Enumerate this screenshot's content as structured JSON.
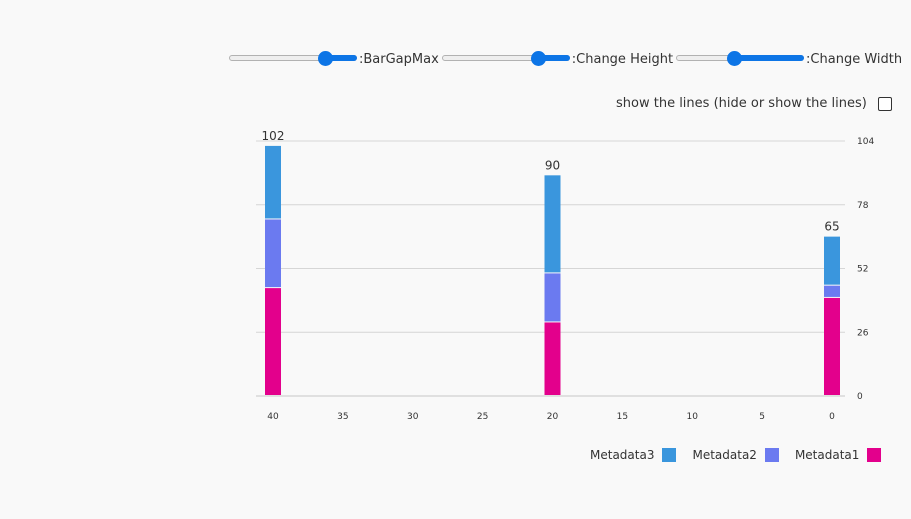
{
  "controls": {
    "bar_gap_max": {
      "label": ":BarGapMax",
      "value": 0.75
    },
    "change_height": {
      "label": ":Change Height",
      "value": 0.75
    },
    "change_width": {
      "label": ":Change Width",
      "value": 0.45
    }
  },
  "toggle_lines": {
    "label": "show the lines (hide or show the lines)",
    "checked": false
  },
  "chart_data": {
    "type": "bar",
    "stacked": true,
    "x": [
      40,
      20,
      0
    ],
    "x_ticks": [
      40,
      35,
      30,
      25,
      20,
      15,
      10,
      5,
      0
    ],
    "x_reversed": true,
    "y_ticks": [
      0,
      26,
      52,
      78,
      104
    ],
    "ylim": [
      0,
      104
    ],
    "y_axis_side": "right",
    "grid": true,
    "totals": [
      102,
      90,
      65
    ],
    "series": [
      {
        "name": "Metadata1",
        "color": "#e3008c",
        "values": [
          44,
          30,
          40
        ]
      },
      {
        "name": "Metadata2",
        "color": "#6b7af0",
        "values": [
          28,
          20,
          5
        ]
      },
      {
        "name": "Metadata3",
        "color": "#3a96dd",
        "values": [
          30,
          40,
          20
        ]
      }
    ],
    "legend_position": "bottom-right",
    "legend_order": [
      "Metadata3",
      "Metadata2",
      "Metadata1"
    ]
  }
}
